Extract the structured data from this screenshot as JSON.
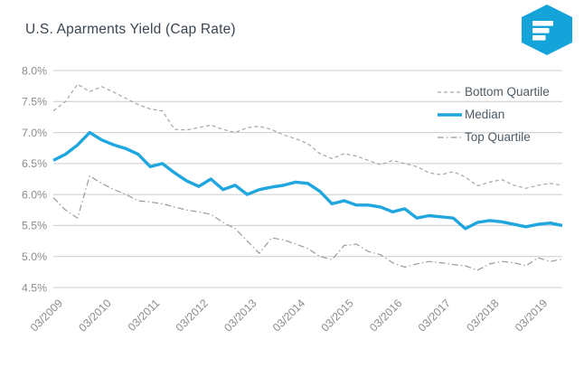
{
  "header": {
    "title": "U.S. Aparments Yield (Cap Rate)"
  },
  "logo": {
    "shape": "hexagon-with-three-bars",
    "color": "#15a4da",
    "bar_color": "#ffffff"
  },
  "colors": {
    "median_accent": "#1fa6df",
    "quartile_gray": "#a6a6a6",
    "gridline": "#cccccc",
    "tick_text": "#8c8c8c",
    "title_text": "#3a4550",
    "legend_text": "#4e5a63"
  },
  "chart_data": {
    "type": "line",
    "title": "U.S. Aparments Yield (Cap Rate)",
    "xlabel": "",
    "ylabel": "",
    "grid": true,
    "legend_position": "top-right-inside",
    "ylim": [
      4.5,
      8.0
    ],
    "y_tick_step": 0.5,
    "y_tick_labels": [
      "8.0%",
      "7.5%",
      "7.0%",
      "6.5%",
      "6.0%",
      "5.5%",
      "5.0%",
      "4.5%"
    ],
    "x_labels": [
      "03/2009",
      "03/2010",
      "03/2011",
      "03/2012",
      "03/2013",
      "03/2014",
      "03/2015",
      "03/2016",
      "03/2017",
      "03/2018",
      "03/2019"
    ],
    "points_per_label": 4,
    "x_frequency": "quarterly",
    "series": [
      {
        "name": "Bottom Quartile",
        "color": "#a6a6a6",
        "style": "dashed",
        "width": 1.2,
        "values": [
          7.35,
          7.5,
          7.78,
          7.66,
          7.74,
          7.65,
          7.55,
          7.45,
          7.38,
          7.35,
          7.05,
          7.04,
          7.08,
          7.12,
          7.05,
          7.0,
          7.08,
          7.1,
          7.05,
          6.96,
          6.9,
          6.82,
          6.66,
          6.58,
          6.66,
          6.62,
          6.55,
          6.48,
          6.55,
          6.5,
          6.45,
          6.35,
          6.32,
          6.37,
          6.28,
          6.14,
          6.2,
          6.24,
          6.15,
          6.1,
          6.15,
          6.18,
          6.15
        ]
      },
      {
        "name": "Median",
        "color": "#1fa6df",
        "style": "solid",
        "width": 3.4,
        "values": [
          6.55,
          6.65,
          6.8,
          7.0,
          6.88,
          6.8,
          6.74,
          6.65,
          6.45,
          6.5,
          6.35,
          6.22,
          6.13,
          6.25,
          6.08,
          6.15,
          6.0,
          6.08,
          6.12,
          6.15,
          6.2,
          6.18,
          6.05,
          5.85,
          5.9,
          5.83,
          5.83,
          5.8,
          5.72,
          5.77,
          5.62,
          5.66,
          5.64,
          5.62,
          5.45,
          5.55,
          5.58,
          5.56,
          5.52,
          5.48,
          5.52,
          5.54,
          5.5
        ]
      },
      {
        "name": "Top Quartile",
        "color": "#9a9a9a",
        "style": "dashdot",
        "width": 1.2,
        "values": [
          5.95,
          5.75,
          5.62,
          6.3,
          6.18,
          6.08,
          6.0,
          5.9,
          5.88,
          5.85,
          5.8,
          5.75,
          5.72,
          5.68,
          5.55,
          5.45,
          5.25,
          5.05,
          5.3,
          5.27,
          5.2,
          5.13,
          5.0,
          4.95,
          5.18,
          5.2,
          5.08,
          5.03,
          4.9,
          4.83,
          4.88,
          4.92,
          4.9,
          4.87,
          4.85,
          4.78,
          4.88,
          4.92,
          4.9,
          4.85,
          4.98,
          4.92,
          4.96
        ]
      }
    ]
  }
}
